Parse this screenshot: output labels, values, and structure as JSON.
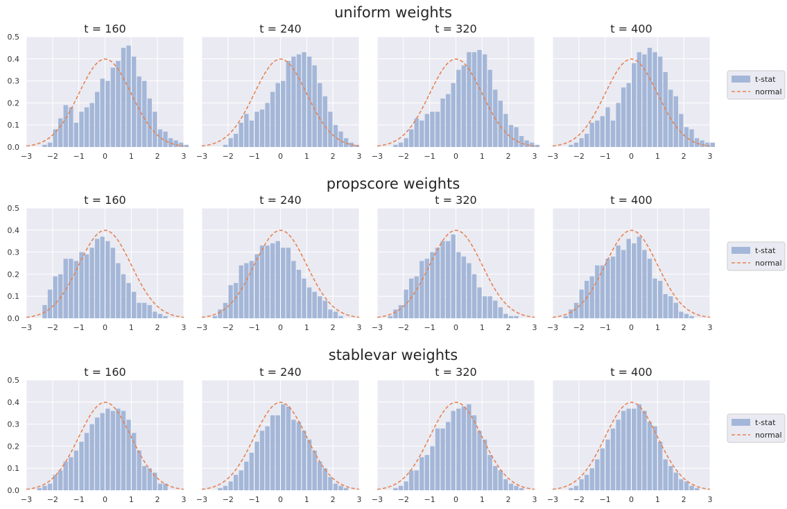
{
  "chart_data": [
    {
      "type": "histogram",
      "title": "uniform weights",
      "xlim": [
        -3,
        3
      ],
      "ylim": [
        0,
        0.5
      ],
      "xticks": [
        "−3",
        "−2",
        "−1",
        "0",
        "1",
        "2",
        "3"
      ],
      "yticks": [
        "0.0",
        "0.1",
        "0.2",
        "0.3",
        "0.4",
        "0.5"
      ],
      "bin_edges_start": -2.6,
      "bin_width": 0.2,
      "grid": true,
      "legend": {
        "position": "right",
        "entries": [
          {
            "label": "t-stat",
            "kind": "bar"
          },
          {
            "label": "normal",
            "kind": "dashed-line"
          }
        ]
      },
      "reference_curve": {
        "name": "normal",
        "mean": 0,
        "sd": 1
      },
      "panels": [
        {
          "title": "t = 160",
          "series": [
            {
              "name": "t-stat",
              "values": [
                0.0,
                0.01,
                0.02,
                0.08,
                0.13,
                0.19,
                0.18,
                0.11,
                0.16,
                0.18,
                0.2,
                0.25,
                0.31,
                0.3,
                0.36,
                0.39,
                0.45,
                0.46,
                0.41,
                0.32,
                0.3,
                0.22,
                0.16,
                0.08,
                0.07,
                0.04,
                0.03,
                0.02,
                0.01
              ]
            }
          ]
        },
        {
          "title": "t = 240",
          "series": [
            {
              "name": "t-stat",
              "values": [
                0.0,
                0.0,
                0.01,
                0.04,
                0.06,
                0.11,
                0.15,
                0.12,
                0.16,
                0.17,
                0.2,
                0.25,
                0.29,
                0.3,
                0.39,
                0.41,
                0.42,
                0.43,
                0.41,
                0.37,
                0.29,
                0.23,
                0.16,
                0.1,
                0.07,
                0.04,
                0.02,
                0.01,
                0.0
              ]
            }
          ]
        },
        {
          "title": "t = 320",
          "series": [
            {
              "name": "t-stat",
              "values": [
                0.0,
                0.01,
                0.02,
                0.04,
                0.08,
                0.13,
                0.12,
                0.15,
                0.16,
                0.16,
                0.22,
                0.24,
                0.29,
                0.35,
                0.37,
                0.43,
                0.43,
                0.44,
                0.42,
                0.35,
                0.26,
                0.21,
                0.15,
                0.1,
                0.09,
                0.05,
                0.03,
                0.02,
                0.01
              ]
            }
          ]
        },
        {
          "title": "t = 400",
          "series": [
            {
              "name": "t-stat",
              "values": [
                0.0,
                0.01,
                0.02,
                0.04,
                0.06,
                0.11,
                0.12,
                0.14,
                0.18,
                0.12,
                0.2,
                0.27,
                0.29,
                0.38,
                0.43,
                0.42,
                0.45,
                0.43,
                0.41,
                0.34,
                0.26,
                0.23,
                0.15,
                0.09,
                0.08,
                0.04,
                0.03,
                0.02,
                0.02
              ]
            }
          ]
        }
      ]
    },
    {
      "type": "histogram",
      "title": "propscore weights",
      "xlim": [
        -3,
        3
      ],
      "ylim": [
        0,
        0.5
      ],
      "xticks": [
        "−3",
        "−2",
        "−1",
        "0",
        "1",
        "2",
        "3"
      ],
      "yticks": [
        "0.0",
        "0.1",
        "0.2",
        "0.3",
        "0.4",
        "0.5"
      ],
      "bin_edges_start": -2.6,
      "bin_width": 0.2,
      "grid": true,
      "legend": {
        "position": "right",
        "entries": [
          {
            "label": "t-stat",
            "kind": "bar"
          },
          {
            "label": "normal",
            "kind": "dashed-line"
          }
        ]
      },
      "reference_curve": {
        "name": "normal",
        "mean": 0,
        "sd": 1
      },
      "panels": [
        {
          "title": "t = 160",
          "series": [
            {
              "name": "t-stat",
              "values": [
                0.0,
                0.06,
                0.13,
                0.19,
                0.2,
                0.27,
                0.27,
                0.26,
                0.3,
                0.29,
                0.32,
                0.36,
                0.37,
                0.35,
                0.32,
                0.25,
                0.2,
                0.16,
                0.12,
                0.07,
                0.07,
                0.06,
                0.03,
                0.02,
                0.01,
                0.0,
                0.0,
                0.0,
                0.0
              ]
            }
          ]
        },
        {
          "title": "t = 240",
          "series": [
            {
              "name": "t-stat",
              "values": [
                0.01,
                0.04,
                0.07,
                0.15,
                0.16,
                0.24,
                0.25,
                0.26,
                0.29,
                0.33,
                0.33,
                0.34,
                0.35,
                0.32,
                0.32,
                0.26,
                0.22,
                0.18,
                0.14,
                0.12,
                0.1,
                0.08,
                0.04,
                0.03,
                0.01,
                0.0,
                0.0,
                0.0,
                0.0
              ]
            }
          ]
        },
        {
          "title": "t = 320",
          "series": [
            {
              "name": "t-stat",
              "values": [
                0.01,
                0.04,
                0.06,
                0.13,
                0.18,
                0.19,
                0.26,
                0.27,
                0.3,
                0.32,
                0.35,
                0.35,
                0.38,
                0.3,
                0.28,
                0.25,
                0.2,
                0.14,
                0.1,
                0.1,
                0.08,
                0.05,
                0.02,
                0.01,
                0.01,
                0.0,
                0.0,
                0.0,
                0.0
              ]
            }
          ]
        },
        {
          "title": "t = 400",
          "series": [
            {
              "name": "t-stat",
              "values": [
                0.01,
                0.04,
                0.07,
                0.13,
                0.17,
                0.19,
                0.24,
                0.24,
                0.27,
                0.28,
                0.33,
                0.31,
                0.36,
                0.34,
                0.37,
                0.31,
                0.27,
                0.18,
                0.17,
                0.11,
                0.1,
                0.07,
                0.03,
                0.02,
                0.01,
                0.0,
                0.0,
                0.0,
                0.0
              ]
            }
          ]
        }
      ]
    },
    {
      "type": "histogram",
      "title": "stablevar weights",
      "xlim": [
        -3,
        3
      ],
      "ylim": [
        0,
        0.5
      ],
      "xticks": [
        "−3",
        "−2",
        "−1",
        "0",
        "1",
        "2",
        "3"
      ],
      "yticks": [
        "0.0",
        "0.1",
        "0.2",
        "0.3",
        "0.4",
        "0.5"
      ],
      "bin_edges_start": -2.6,
      "bin_width": 0.2,
      "grid": true,
      "legend": {
        "position": "right",
        "entries": [
          {
            "label": "t-stat",
            "kind": "bar"
          },
          {
            "label": "normal",
            "kind": "dashed-line"
          }
        ]
      },
      "reference_curve": {
        "name": "normal",
        "mean": 0,
        "sd": 1
      },
      "panels": [
        {
          "title": "t = 160",
          "series": [
            {
              "name": "t-stat",
              "values": [
                0.01,
                0.02,
                0.03,
                0.07,
                0.09,
                0.13,
                0.15,
                0.18,
                0.22,
                0.26,
                0.3,
                0.33,
                0.35,
                0.37,
                0.36,
                0.37,
                0.36,
                0.32,
                0.26,
                0.18,
                0.11,
                0.1,
                0.08,
                0.03,
                0.03,
                0.0,
                0.0,
                0.0,
                0.0
              ]
            }
          ]
        },
        {
          "title": "t = 240",
          "series": [
            {
              "name": "t-stat",
              "values": [
                0.0,
                0.01,
                0.02,
                0.04,
                0.07,
                0.09,
                0.13,
                0.17,
                0.22,
                0.27,
                0.29,
                0.34,
                0.34,
                0.39,
                0.38,
                0.32,
                0.31,
                0.27,
                0.23,
                0.18,
                0.13,
                0.1,
                0.06,
                0.03,
                0.02,
                0.01,
                0.0,
                0.0,
                0.0
              ]
            }
          ]
        },
        {
          "title": "t = 320",
          "series": [
            {
              "name": "t-stat",
              "values": [
                0.0,
                0.01,
                0.02,
                0.04,
                0.09,
                0.09,
                0.15,
                0.16,
                0.2,
                0.28,
                0.28,
                0.31,
                0.36,
                0.37,
                0.38,
                0.39,
                0.34,
                0.27,
                0.23,
                0.16,
                0.11,
                0.09,
                0.05,
                0.03,
                0.02,
                0.01,
                0.0,
                0.0,
                0.0
              ]
            }
          ]
        },
        {
          "title": "t = 400",
          "series": [
            {
              "name": "t-stat",
              "values": [
                0.0,
                0.01,
                0.02,
                0.05,
                0.07,
                0.1,
                0.14,
                0.19,
                0.23,
                0.28,
                0.32,
                0.36,
                0.37,
                0.37,
                0.39,
                0.36,
                0.31,
                0.29,
                0.22,
                0.14,
                0.11,
                0.08,
                0.05,
                0.04,
                0.02,
                0.01,
                0.0,
                0.0,
                0.0
              ]
            }
          ]
        }
      ]
    }
  ]
}
